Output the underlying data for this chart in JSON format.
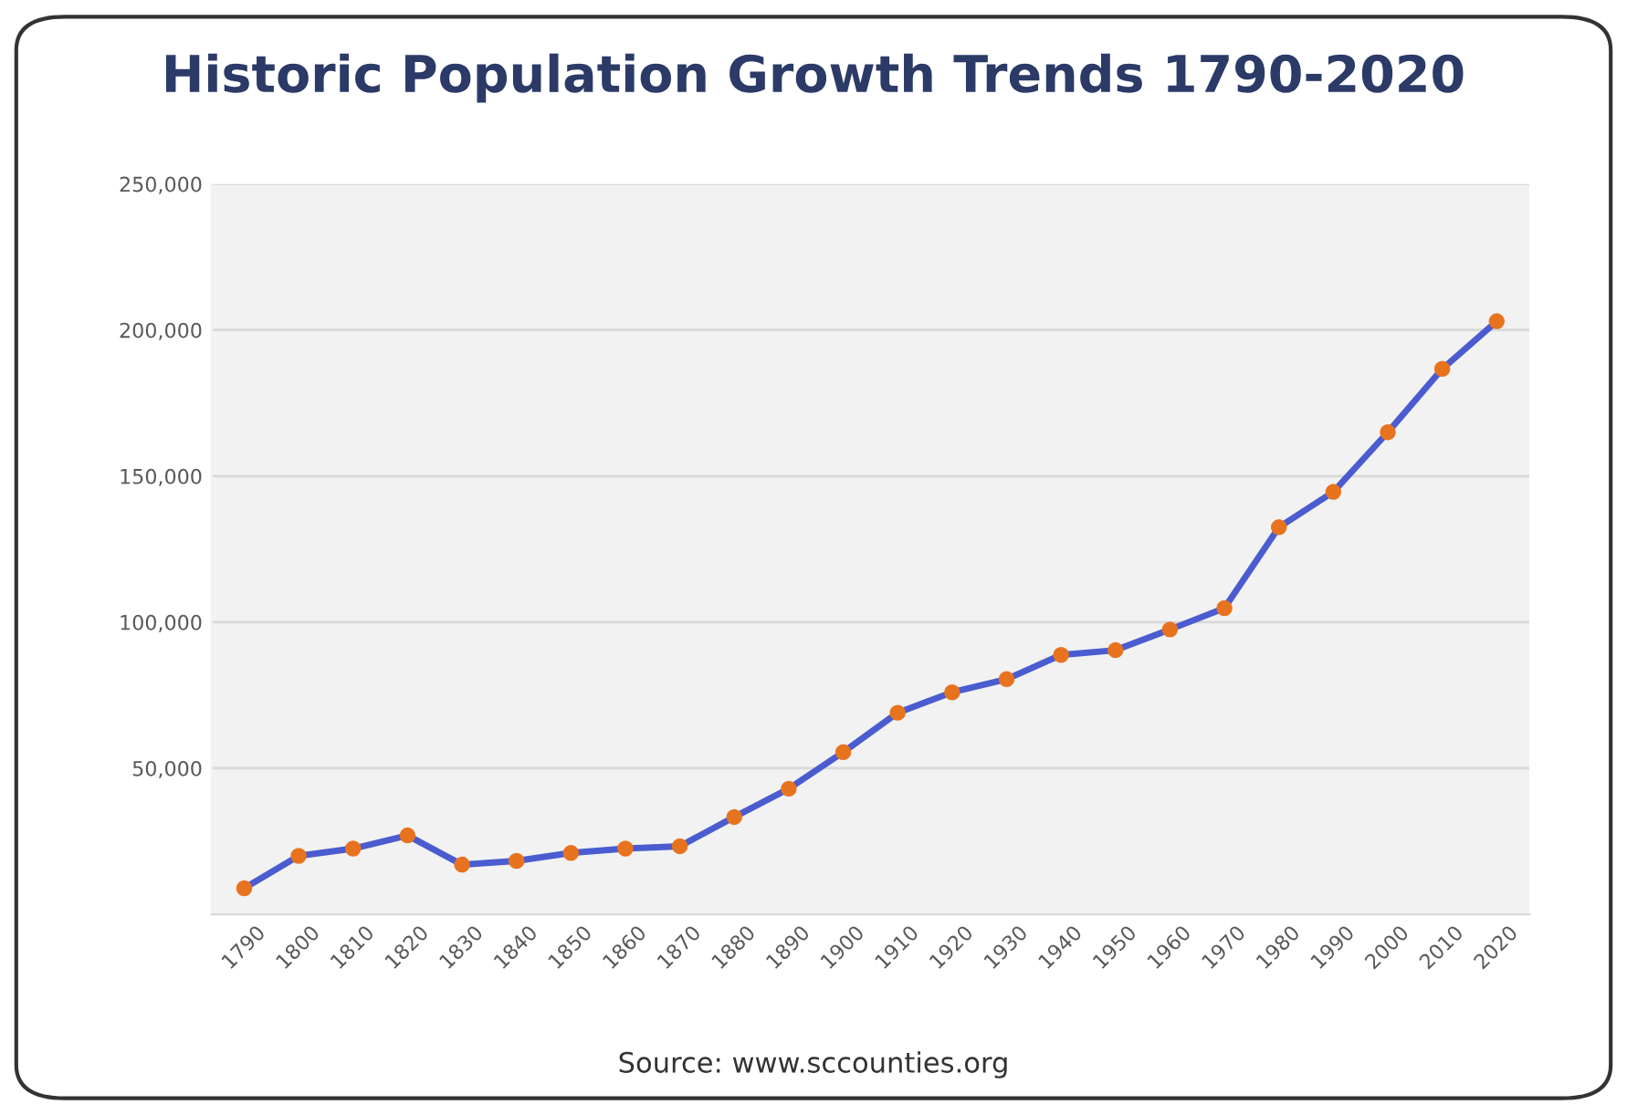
{
  "chart_data": {
    "type": "line",
    "title": "Historic Population Growth Trends 1790-2020",
    "categories": [
      "1790",
      "1800",
      "1810",
      "1820",
      "1830",
      "1840",
      "1850",
      "1860",
      "1870",
      "1880",
      "1890",
      "1900",
      "1910",
      "1920",
      "1930",
      "1940",
      "1950",
      "1960",
      "1970",
      "1980",
      "1990",
      "2000",
      "2010",
      "2020"
    ],
    "series": [
      {
        "color": "#4a5cd0",
        "colors": [
          "#e8731e",
          "#e8731e",
          "#e8731e",
          "#e8731e",
          "#e8731e",
          "#e8731e",
          "#e8731e",
          "#e8731e",
          "#e8731e",
          "#e8731e",
          "#e8731e",
          "#e8731e",
          "#e8731e",
          "#e8731e",
          "#e8731e",
          "#e8731e",
          "#e8731e",
          "#e8731e",
          "#e8731e",
          "#e8731e",
          "#e8731e",
          "#e8731e",
          "#e8731e",
          "#e8731e"
        ],
        "values": [
          8900,
          20000,
          22500,
          27000,
          17000,
          18300,
          21000,
          22500,
          23300,
          33300,
          43000,
          55500,
          69000,
          76000,
          80500,
          88800,
          90400,
          97500,
          104800,
          132500,
          144600,
          165000,
          186700,
          203000
        ]
      }
    ],
    "ylim": [
      0,
      250000
    ],
    "yticks": [
      {
        "value": 50000,
        "label": "50,000"
      },
      {
        "value": 100000,
        "label": "100,000"
      },
      {
        "value": 150000,
        "label": "150,000"
      },
      {
        "value": 200000,
        "label": "200,000"
      },
      {
        "value": 250000,
        "label": "250,000"
      }
    ],
    "grid": "y",
    "marker": "circle",
    "line_style": "solid",
    "annotations": [
      "Source: www.sccounties.org"
    ]
  }
}
